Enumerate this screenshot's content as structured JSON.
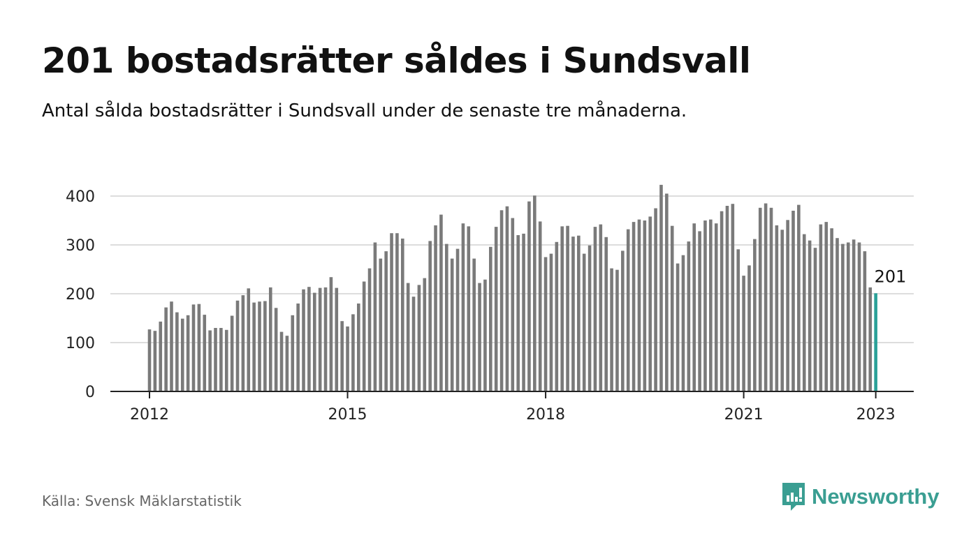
{
  "title": "201 bostadsrätter såldes i Sundsvall",
  "subtitle": "Antal sålda bostadsrätter i Sundsvall under de senaste tre månaderna.",
  "source": "Källa: Svensk Mäklarstatistik",
  "brand": {
    "name": "Newsworthy",
    "icon": "newsworthy-logo-icon",
    "color": "#3a9e92"
  },
  "colors": {
    "bar": "#7a7a7a",
    "highlight": "#2aa198",
    "grid": "#dddddd",
    "axis": "#222222"
  },
  "chart_data": {
    "type": "bar",
    "x_start": "2012-01",
    "interval": "month",
    "values": [
      127,
      124,
      143,
      172,
      184,
      162,
      149,
      156,
      178,
      179,
      157,
      125,
      130,
      130,
      126,
      155,
      186,
      197,
      211,
      182,
      184,
      185,
      213,
      171,
      122,
      114,
      156,
      180,
      209,
      214,
      202,
      212,
      213,
      234,
      212,
      144,
      133,
      158,
      180,
      225,
      252,
      305,
      272,
      287,
      324,
      324,
      313,
      222,
      194,
      218,
      232,
      308,
      340,
      362,
      302,
      272,
      292,
      344,
      338,
      272,
      222,
      229,
      296,
      337,
      371,
      379,
      355,
      320,
      323,
      389,
      401,
      348,
      275,
      282,
      306,
      338,
      339,
      317,
      319,
      282,
      299,
      337,
      342,
      316,
      252,
      249,
      288,
      332,
      347,
      352,
      350,
      358,
      375,
      423,
      405,
      339,
      262,
      279,
      307,
      344,
      328,
      350,
      352,
      344,
      369,
      380,
      384,
      291,
      237,
      258,
      312,
      376,
      385,
      376,
      340,
      331,
      351,
      370,
      382,
      322,
      309,
      294,
      342,
      347,
      334,
      314,
      302,
      305,
      311,
      305,
      287,
      213,
      201
    ],
    "highlight_label": "201",
    "xticks": [
      "2012",
      "2015",
      "2018",
      "2021",
      "2023"
    ],
    "yticks": [
      "0",
      "100",
      "200",
      "300",
      "400"
    ],
    "ylim": [
      0,
      400
    ],
    "grid": true,
    "xlabel": "",
    "ylabel": ""
  }
}
